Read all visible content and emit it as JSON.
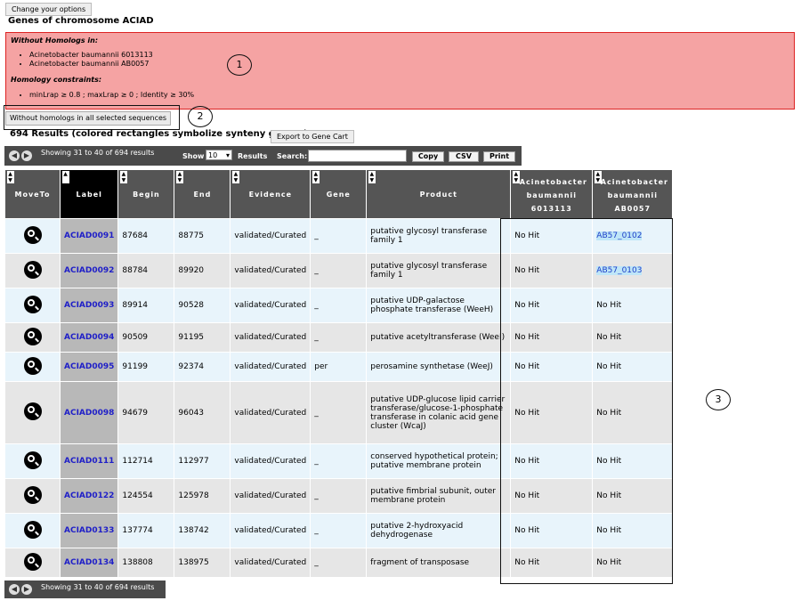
{
  "options_button": "Change your options",
  "page_title": "Genes of chromosome ACIAD",
  "without_homologs_title": "Without Homologs in:",
  "without_homologs": [
    "Acinetobacter baumannii 6013113",
    "Acinetobacter baumannii AB0057"
  ],
  "constraints_title": "Homology constraints:",
  "constraints": [
    "minLrap ≥ 0.8 ; maxLrap ≥ 0 ; Identity ≥ 30%"
  ],
  "markers": [
    "1",
    "2",
    "3"
  ],
  "filter_button": "Without homologs in all selected sequences",
  "results_title": "694 Results (colored rectangles symbolize synteny groups)",
  "export_button": "Export to Gene Cart",
  "toolbar": {
    "showing": "Showing 31 to 40 of 694 results",
    "show_label": "Show",
    "show_value": "10",
    "results_label": "Results",
    "search_label": "Search:",
    "copy": "Copy",
    "csv": "CSV",
    "print": "Print"
  },
  "columns": [
    "MoveTo",
    "Label",
    "Begin",
    "End",
    "Evidence",
    "Gene",
    "Product",
    "Acinetobacter baumannii 6013113",
    "Acinetobacter baumannii AB0057"
  ],
  "rows": [
    {
      "label": "ACIAD0091",
      "begin": "87684",
      "end": "88775",
      "evidence": "validated/Curated",
      "gene": "_",
      "product": "putative glycosyl transferase family 1",
      "a6013113": "No Hit",
      "ab0057": "AB57_0102"
    },
    {
      "label": "ACIAD0092",
      "begin": "88784",
      "end": "89920",
      "evidence": "validated/Curated",
      "gene": "_",
      "product": "putative glycosyl transferase family 1",
      "a6013113": "No Hit",
      "ab0057": "AB57_0103"
    },
    {
      "label": "ACIAD0093",
      "begin": "89914",
      "end": "90528",
      "evidence": "validated/Curated",
      "gene": "_",
      "product": "putative UDP-galactose phosphate transferase (WeeH)",
      "a6013113": "No Hit",
      "ab0057": "No Hit"
    },
    {
      "label": "ACIAD0094",
      "begin": "90509",
      "end": "91195",
      "evidence": "validated/Curated",
      "gene": "_",
      "product": "putative acetyltransferase (WeeI)",
      "a6013113": "No Hit",
      "ab0057": "No Hit"
    },
    {
      "label": "ACIAD0095",
      "begin": "91199",
      "end": "92374",
      "evidence": "validated/Curated",
      "gene": "per",
      "product": "perosamine synthetase (WeeJ)",
      "a6013113": "No Hit",
      "ab0057": "No Hit"
    },
    {
      "label": "ACIAD0098",
      "begin": "94679",
      "end": "96043",
      "evidence": "validated/Curated",
      "gene": "_",
      "product": "putative UDP-glucose lipid carrier transferase/glucose-1-phosphate transferase in colanic acid gene cluster (WcaJ)",
      "a6013113": "No Hit",
      "ab0057": "No Hit"
    },
    {
      "label": "ACIAD0111",
      "begin": "112714",
      "end": "112977",
      "evidence": "validated/Curated",
      "gene": "_",
      "product": "conserved hypothetical protein; putative membrane protein",
      "a6013113": "No Hit",
      "ab0057": "No Hit"
    },
    {
      "label": "ACIAD0122",
      "begin": "124554",
      "end": "125978",
      "evidence": "validated/Curated",
      "gene": "_",
      "product": "putative fimbrial subunit, outer membrane protein",
      "a6013113": "No Hit",
      "ab0057": "No Hit"
    },
    {
      "label": "ACIAD0133",
      "begin": "137774",
      "end": "138742",
      "evidence": "validated/Curated",
      "gene": "_",
      "product": "putative 2-hydroxyacid dehydrogenase",
      "a6013113": "No Hit",
      "ab0057": "No Hit"
    },
    {
      "label": "ACIAD0134",
      "begin": "138808",
      "end": "138975",
      "evidence": "validated/Curated",
      "gene": "_",
      "product": "fragment of transposase",
      "a6013113": "No Hit",
      "ab0057": "No Hit"
    }
  ],
  "bottom_showing": "Showing 31 to 40 of 694 results"
}
